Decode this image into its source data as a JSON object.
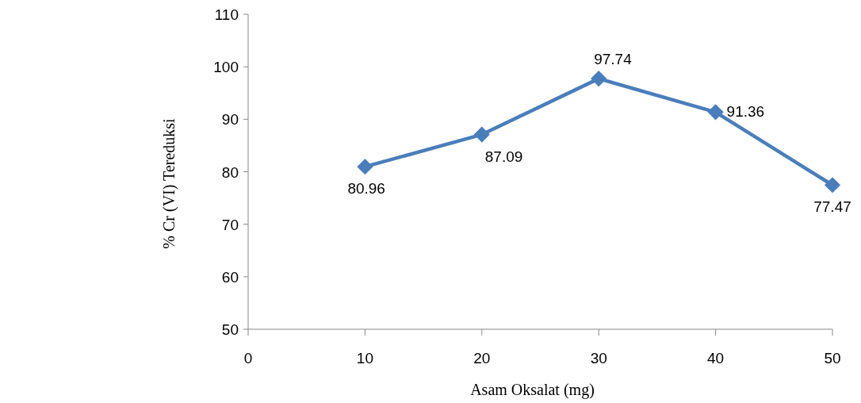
{
  "chart_data": {
    "type": "line",
    "xlabel": "Asam Oksalat (mg)",
    "ylabel": "% Cr (VI) Tereduksi",
    "x": [
      10,
      20,
      30,
      40,
      50
    ],
    "series": [
      {
        "color": "#4a7ebb",
        "values": [
          80.96,
          87.09,
          97.74,
          91.36,
          77.47
        ]
      }
    ],
    "xlim": [
      0,
      50
    ],
    "xticks": [
      0,
      10,
      20,
      30,
      40,
      50
    ],
    "ylim": [
      50,
      110
    ],
    "yticks": [
      50,
      60,
      70,
      80,
      90,
      100,
      110
    ],
    "marker": "diamond",
    "data_labels": true
  }
}
